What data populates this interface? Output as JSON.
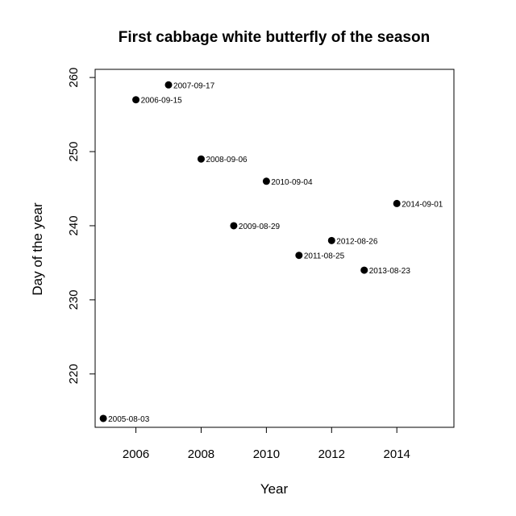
{
  "chart_data": {
    "type": "scatter",
    "title": "First cabbage white butterfly of the season",
    "xlabel": "Year",
    "ylabel": "Day of the year",
    "xlim": [
      2004.75,
      2015.75
    ],
    "ylim": [
      212.8,
      261.1
    ],
    "x_ticks": [
      2006,
      2008,
      2010,
      2012,
      2014
    ],
    "y_ticks": [
      220,
      230,
      240,
      250,
      260
    ],
    "grid": false,
    "points": [
      {
        "x": 2005,
        "y": 214,
        "label": "2005-08-03"
      },
      {
        "x": 2006,
        "y": 257,
        "label": "2006-09-15"
      },
      {
        "x": 2007,
        "y": 259,
        "label": "2007-09-17"
      },
      {
        "x": 2008,
        "y": 249,
        "label": "2008-09-06"
      },
      {
        "x": 2009,
        "y": 240,
        "label": "2009-08-29"
      },
      {
        "x": 2010,
        "y": 246,
        "label": "2010-09-04"
      },
      {
        "x": 2011,
        "y": 236,
        "label": "2011-08-25"
      },
      {
        "x": 2012,
        "y": 238,
        "label": "2012-08-26"
      },
      {
        "x": 2013,
        "y": 234,
        "label": "2013-08-23"
      },
      {
        "x": 2014,
        "y": 243,
        "label": "2014-09-01"
      }
    ],
    "colors": {
      "point": "#000000",
      "axis": "#000000"
    }
  }
}
